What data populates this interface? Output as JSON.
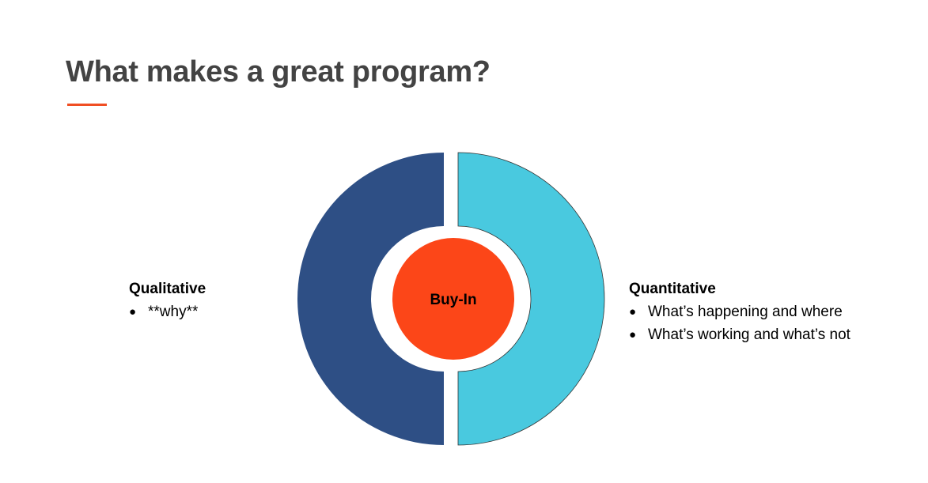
{
  "header": {
    "title": "What makes a great program?"
  },
  "diagram": {
    "center": {
      "label": "Buy-In"
    },
    "left": {
      "heading": "Qualitative",
      "bullets": [
        "**why**"
      ]
    },
    "right": {
      "heading": "Quantitative",
      "bullets": [
        "What’s happening and where",
        "What’s working and what’s not"
      ]
    }
  }
}
